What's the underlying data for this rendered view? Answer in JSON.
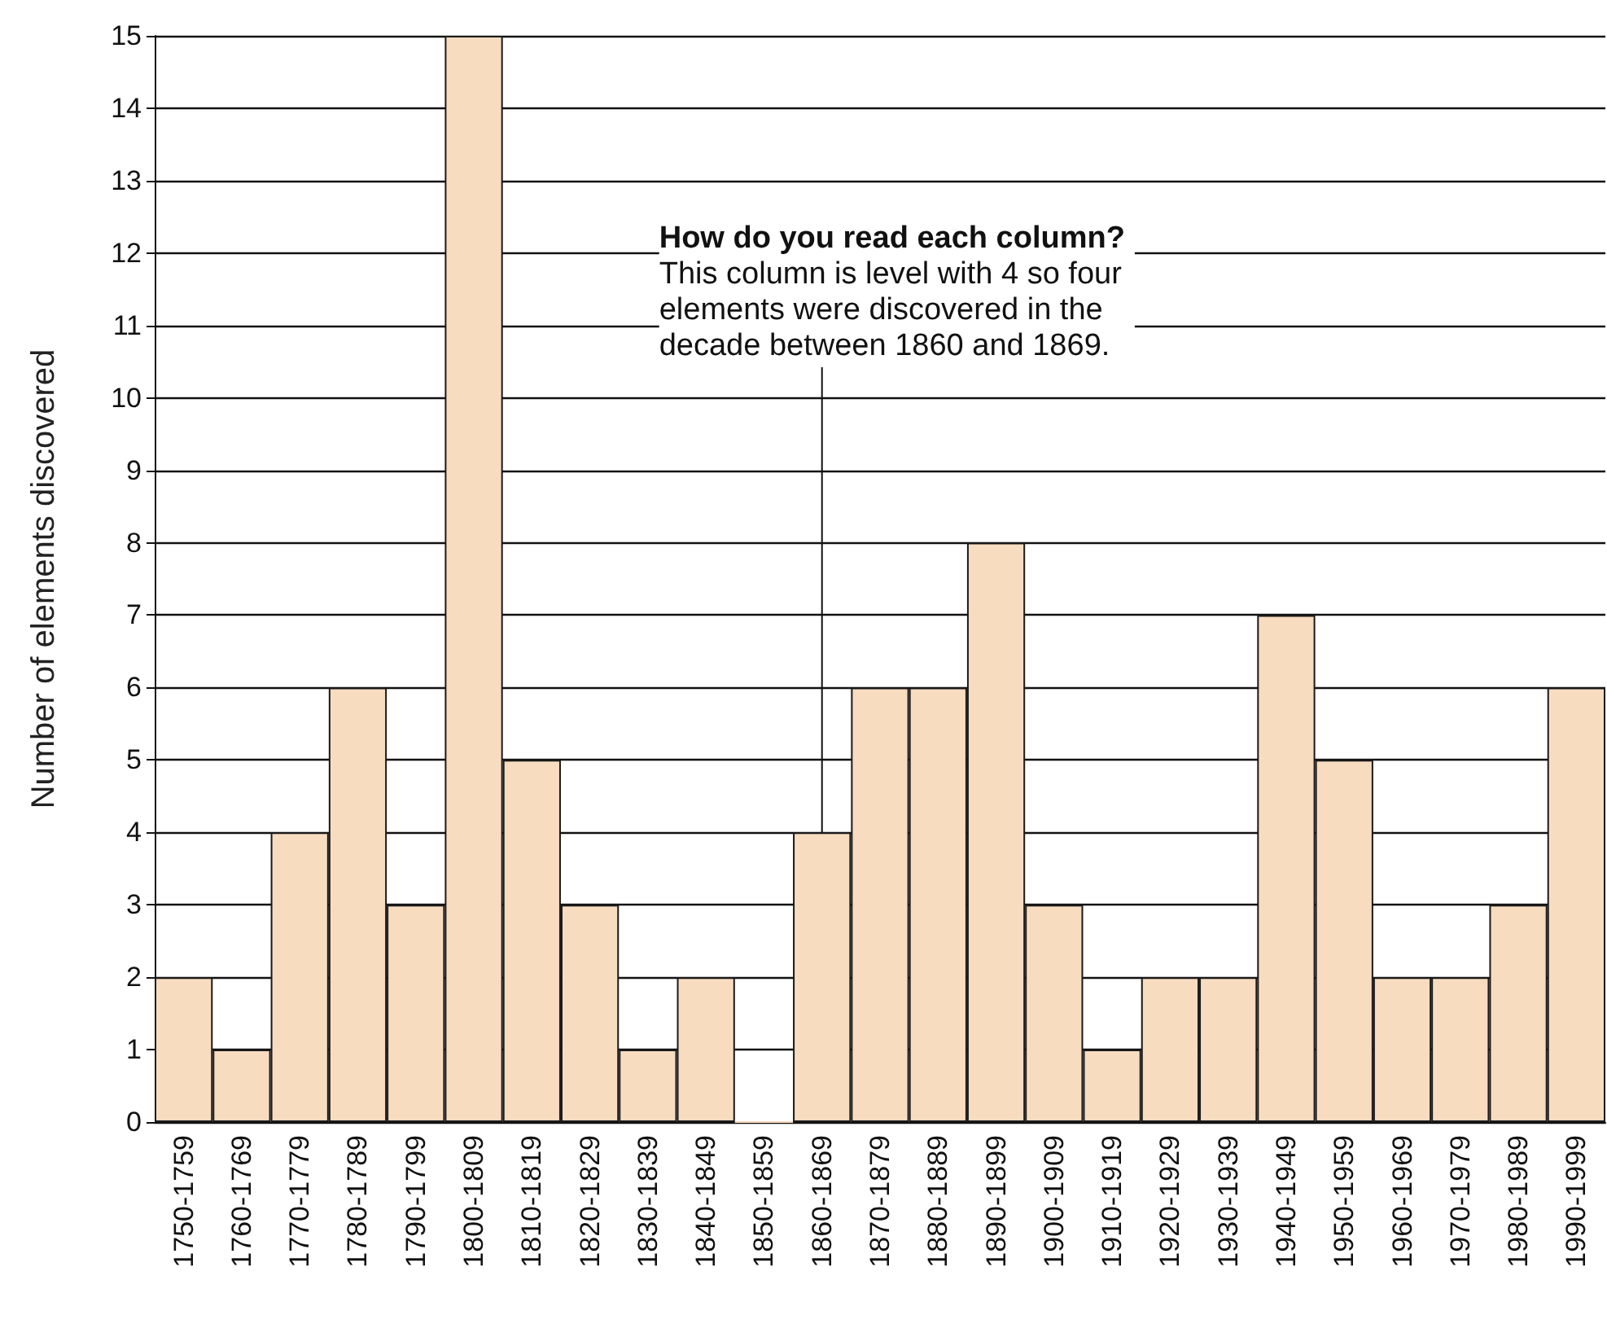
{
  "chart_data": {
    "type": "bar",
    "ylabel": "Number of elements discovered",
    "categories": [
      "1750-1759",
      "1760-1769",
      "1770-1779",
      "1780-1789",
      "1790-1799",
      "1800-1809",
      "1810-1819",
      "1820-1829",
      "1830-1839",
      "1840-1849",
      "1850-1859",
      "1860-1869",
      "1870-1879",
      "1880-1889",
      "1890-1899",
      "1900-1909",
      "1910-1919",
      "1920-1929",
      "1930-1939",
      "1940-1949",
      "1950-1959",
      "1960-1969",
      "1970-1979",
      "1980-1989",
      "1990-1999"
    ],
    "values": [
      2,
      1,
      4,
      6,
      3,
      15,
      5,
      3,
      1,
      2,
      0,
      4,
      6,
      6,
      8,
      3,
      1,
      2,
      2,
      7,
      5,
      2,
      2,
      3,
      6
    ],
    "color": "#f8dcc0",
    "ylim": [
      0,
      15
    ],
    "yticks": [
      0,
      1,
      2,
      3,
      4,
      5,
      6,
      7,
      8,
      9,
      10,
      11,
      12,
      13,
      14,
      15
    ],
    "grid": "y",
    "annotations": [
      {
        "text": "How do you read each column?\nThis column is level with 4 so four\nelements were discovered in the\ndecade between 1860 and 1869.",
        "x": "1860-1869",
        "y": 4
      }
    ]
  }
}
